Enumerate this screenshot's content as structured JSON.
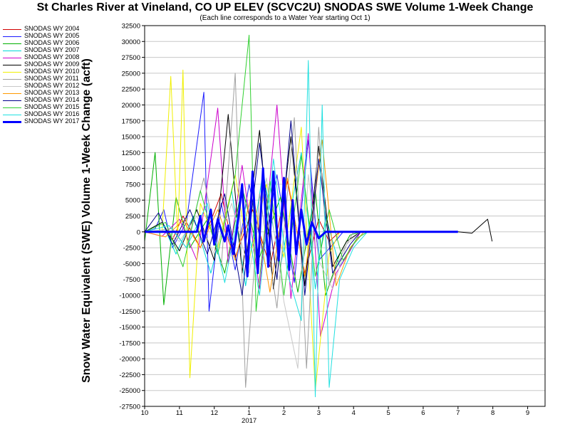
{
  "chart_data": {
    "type": "line",
    "title": "St Charles River at Vineland, CO UP ELEV (SCVC2U) SNODAS SWE Volume 1-Week Change",
    "subtitle": "(Each line corresponds to a Water Year starting Oct 1)",
    "ylabel": "Snow Water Equivalent (SWE) Volume 1-Week Change (acft)",
    "xlabel": "",
    "ylim": [
      -27500,
      32500
    ],
    "ytick_step": 2500,
    "grid": true,
    "legend_position": "left",
    "x_ticks": [
      "10",
      "11",
      "12",
      "1",
      "2",
      "3",
      "4",
      "5",
      "6",
      "7",
      "8",
      "9"
    ],
    "x_year_label": "2017",
    "series": [
      {
        "name": "SNODAS WY 2004",
        "color": "#d00000",
        "width": 1,
        "points": [
          [
            0,
            0
          ],
          [
            0.6,
            0
          ],
          [
            0.8,
            -1200
          ],
          [
            1.1,
            2500
          ],
          [
            1.6,
            -2500
          ],
          [
            2.2,
            6000
          ],
          [
            2.6,
            -4000
          ],
          [
            3.1,
            3500
          ],
          [
            3.6,
            -5500
          ],
          [
            4.1,
            8000
          ],
          [
            4.6,
            -6500
          ],
          [
            5.0,
            2000
          ],
          [
            5.3,
            -1500
          ],
          [
            5.6,
            0
          ],
          [
            9.0,
            0
          ]
        ]
      },
      {
        "name": "SNODAS WY 2005",
        "color": "#1a1aff",
        "width": 1,
        "points": [
          [
            0,
            0
          ],
          [
            0.3,
            500
          ],
          [
            0.55,
            3500
          ],
          [
            0.8,
            -2500
          ],
          [
            1.2,
            1500
          ],
          [
            1.7,
            22000
          ],
          [
            1.85,
            -12500
          ],
          [
            2.2,
            4500
          ],
          [
            2.6,
            -6000
          ],
          [
            3.0,
            7500
          ],
          [
            3.4,
            -3500
          ],
          [
            3.8,
            9000
          ],
          [
            4.3,
            -8000
          ],
          [
            4.7,
            14500
          ],
          [
            5.0,
            -4500
          ],
          [
            5.4,
            -2000
          ],
          [
            5.7,
            0
          ],
          [
            9.0,
            0
          ]
        ]
      },
      {
        "name": "SNODAS WY 2006",
        "color": "#00b000",
        "width": 1,
        "points": [
          [
            0,
            -1500
          ],
          [
            0.3,
            12500
          ],
          [
            0.55,
            -11500
          ],
          [
            0.9,
            5500
          ],
          [
            1.3,
            -2500
          ],
          [
            1.8,
            2000
          ],
          [
            2.3,
            -6500
          ],
          [
            2.8,
            7000
          ],
          [
            3.3,
            -4000
          ],
          [
            3.9,
            5500
          ],
          [
            4.4,
            -9500
          ],
          [
            4.9,
            6500
          ],
          [
            5.2,
            -10000
          ],
          [
            5.6,
            -3500
          ],
          [
            5.9,
            -500
          ],
          [
            6.2,
            0
          ],
          [
            9.0,
            0
          ]
        ]
      },
      {
        "name": "SNODAS WY 2007",
        "color": "#00d8d8",
        "width": 1,
        "points": [
          [
            0,
            0
          ],
          [
            0.5,
            1500
          ],
          [
            0.9,
            -3500
          ],
          [
            1.4,
            2500
          ],
          [
            1.9,
            -6500
          ],
          [
            2.5,
            6500
          ],
          [
            2.9,
            -8500
          ],
          [
            3.4,
            9500
          ],
          [
            3.9,
            -5500
          ],
          [
            4.5,
            12500
          ],
          [
            4.9,
            -9000
          ],
          [
            5.2,
            2500
          ],
          [
            5.6,
            -5500
          ],
          [
            6.0,
            -2000
          ],
          [
            6.3,
            0
          ],
          [
            9.0,
            0
          ]
        ]
      },
      {
        "name": "SNODAS WY 2008",
        "color": "#cc00cc",
        "width": 1,
        "points": [
          [
            0,
            0
          ],
          [
            0.5,
            -700
          ],
          [
            1.0,
            2000
          ],
          [
            1.5,
            -4500
          ],
          [
            2.1,
            19500
          ],
          [
            2.4,
            -5000
          ],
          [
            2.8,
            10500
          ],
          [
            3.3,
            -9000
          ],
          [
            3.8,
            20000
          ],
          [
            4.2,
            -10500
          ],
          [
            4.7,
            15500
          ],
          [
            5.05,
            -16500
          ],
          [
            5.5,
            -6500
          ],
          [
            5.9,
            -3000
          ],
          [
            6.2,
            0
          ],
          [
            9.0,
            0
          ]
        ]
      },
      {
        "name": "SNODAS WY 2009",
        "color": "#000000",
        "width": 1,
        "points": [
          [
            0,
            0
          ],
          [
            0.5,
            1500
          ],
          [
            1.0,
            -3000
          ],
          [
            1.5,
            3500
          ],
          [
            2.0,
            -4500
          ],
          [
            2.4,
            18500
          ],
          [
            2.8,
            -6500
          ],
          [
            3.3,
            16000
          ],
          [
            3.7,
            -9000
          ],
          [
            4.2,
            15000
          ],
          [
            4.6,
            -8500
          ],
          [
            5.0,
            13500
          ],
          [
            5.4,
            -5500
          ],
          [
            5.8,
            -1500
          ],
          [
            6.2,
            0
          ],
          [
            9.0,
            0
          ],
          [
            9.4,
            -200
          ],
          [
            9.85,
            2000
          ],
          [
            9.98,
            -1500
          ]
        ]
      },
      {
        "name": "SNODAS WY 2010",
        "color": "#f0f000",
        "width": 1,
        "points": [
          [
            0,
            0
          ],
          [
            0.5,
            0
          ],
          [
            0.75,
            24500
          ],
          [
            0.95,
            -1000
          ],
          [
            1.1,
            25500
          ],
          [
            1.3,
            -23000
          ],
          [
            1.6,
            4500
          ],
          [
            2.1,
            -2500
          ],
          [
            2.6,
            9000
          ],
          [
            3.0,
            -4500
          ],
          [
            3.5,
            7500
          ],
          [
            4.0,
            -4000
          ],
          [
            4.5,
            16500
          ],
          [
            4.9,
            -25000
          ],
          [
            5.3,
            -3500
          ],
          [
            5.6,
            0
          ],
          [
            9.0,
            0
          ]
        ]
      },
      {
        "name": "SNODAS WY 2011",
        "color": "#a0a0a0",
        "width": 1,
        "points": [
          [
            0,
            0
          ],
          [
            0.8,
            500
          ],
          [
            1.2,
            -2500
          ],
          [
            1.7,
            8500
          ],
          [
            2.2,
            -5500
          ],
          [
            2.6,
            25000
          ],
          [
            2.9,
            -24500
          ],
          [
            3.3,
            6000
          ],
          [
            3.8,
            -12000
          ],
          [
            4.3,
            18000
          ],
          [
            4.65,
            -21500
          ],
          [
            5.0,
            16500
          ],
          [
            5.3,
            -8500
          ],
          [
            5.7,
            -3000
          ],
          [
            6.0,
            0
          ],
          [
            9.0,
            0
          ]
        ]
      },
      {
        "name": "SNODAS WY 2012",
        "color": "#c8c8c8",
        "width": 1,
        "points": [
          [
            0,
            0
          ],
          [
            0.5,
            300
          ],
          [
            1.0,
            -1500
          ],
          [
            1.5,
            2500
          ],
          [
            2.0,
            -3500
          ],
          [
            2.5,
            4500
          ],
          [
            3.0,
            -6500
          ],
          [
            3.5,
            8500
          ],
          [
            4.0,
            -11000
          ],
          [
            4.4,
            -21500
          ],
          [
            4.7,
            9000
          ],
          [
            5.0,
            -4500
          ],
          [
            5.4,
            -9000
          ],
          [
            5.8,
            -2000
          ],
          [
            6.2,
            0
          ],
          [
            9.0,
            0
          ]
        ]
      },
      {
        "name": "SNODAS WY 2013",
        "color": "#ff9900",
        "width": 1,
        "points": [
          [
            0,
            0
          ],
          [
            0.6,
            -800
          ],
          [
            1.1,
            1800
          ],
          [
            1.6,
            -2500
          ],
          [
            2.1,
            3500
          ],
          [
            2.6,
            -4500
          ],
          [
            3.1,
            6500
          ],
          [
            3.6,
            -9500
          ],
          [
            4.1,
            8500
          ],
          [
            4.6,
            -7000
          ],
          [
            5.1,
            14500
          ],
          [
            5.5,
            -8500
          ],
          [
            5.9,
            -2500
          ],
          [
            6.3,
            0
          ],
          [
            9.0,
            0
          ]
        ]
      },
      {
        "name": "SNODAS WY 2014",
        "color": "#00008b",
        "width": 1,
        "points": [
          [
            0,
            0
          ],
          [
            0.4,
            3000
          ],
          [
            0.8,
            -2000
          ],
          [
            1.3,
            3500
          ],
          [
            1.8,
            -3500
          ],
          [
            2.3,
            6000
          ],
          [
            2.8,
            -10000
          ],
          [
            3.3,
            14000
          ],
          [
            3.8,
            -7500
          ],
          [
            4.2,
            17500
          ],
          [
            4.6,
            -10000
          ],
          [
            5.0,
            11500
          ],
          [
            5.4,
            -6500
          ],
          [
            5.9,
            -2000
          ],
          [
            6.2,
            0
          ],
          [
            9.0,
            0
          ]
        ]
      },
      {
        "name": "SNODAS WY 2015",
        "color": "#30d030",
        "width": 1,
        "points": [
          [
            0,
            0
          ],
          [
            0.6,
            1500
          ],
          [
            1.1,
            -5500
          ],
          [
            1.6,
            6500
          ],
          [
            2.1,
            -3500
          ],
          [
            2.6,
            9000
          ],
          [
            3.0,
            31000
          ],
          [
            3.2,
            -12500
          ],
          [
            3.6,
            8000
          ],
          [
            4.0,
            -10000
          ],
          [
            4.5,
            12000
          ],
          [
            4.9,
            -7000
          ],
          [
            5.3,
            3500
          ],
          [
            5.7,
            -4500
          ],
          [
            6.1,
            -1000
          ],
          [
            6.4,
            0
          ],
          [
            9.0,
            0
          ]
        ]
      },
      {
        "name": "SNODAS WY 2016",
        "color": "#20e0e0",
        "width": 1,
        "points": [
          [
            0,
            0
          ],
          [
            0.7,
            1000
          ],
          [
            1.2,
            -2500
          ],
          [
            1.8,
            4500
          ],
          [
            2.3,
            -8000
          ],
          [
            2.8,
            6000
          ],
          [
            3.3,
            -10000
          ],
          [
            3.7,
            11500
          ],
          [
            4.1,
            -6500
          ],
          [
            4.5,
            -14000
          ],
          [
            4.7,
            27000
          ],
          [
            4.9,
            -26000
          ],
          [
            5.1,
            20000
          ],
          [
            5.3,
            -24500
          ],
          [
            5.6,
            -7500
          ],
          [
            6.0,
            -2500
          ],
          [
            6.4,
            0
          ],
          [
            9.0,
            0
          ]
        ]
      },
      {
        "name": "SNODAS WY 2017",
        "color": "#0000ff",
        "width": 3,
        "points": [
          [
            0,
            0
          ],
          [
            1.5,
            0
          ],
          [
            1.6,
            2500
          ],
          [
            1.7,
            -1500
          ],
          [
            1.8,
            1000
          ],
          [
            1.9,
            3500
          ],
          [
            2.0,
            -2000
          ],
          [
            2.1,
            2000
          ],
          [
            2.3,
            -1500
          ],
          [
            2.4,
            1000
          ],
          [
            2.55,
            -3500
          ],
          [
            2.7,
            2500
          ],
          [
            2.8,
            7500
          ],
          [
            2.95,
            -7000
          ],
          [
            3.1,
            9500
          ],
          [
            3.25,
            -6500
          ],
          [
            3.4,
            10000
          ],
          [
            3.55,
            -5500
          ],
          [
            3.7,
            9500
          ],
          [
            3.85,
            -4500
          ],
          [
            4.0,
            8500
          ],
          [
            4.15,
            -6000
          ],
          [
            4.25,
            5000
          ],
          [
            4.35,
            -3500
          ],
          [
            4.5,
            3500
          ],
          [
            4.65,
            -2000
          ],
          [
            4.8,
            1500
          ],
          [
            5.0,
            -1000
          ],
          [
            5.2,
            0
          ],
          [
            9.0,
            0
          ]
        ]
      }
    ]
  }
}
